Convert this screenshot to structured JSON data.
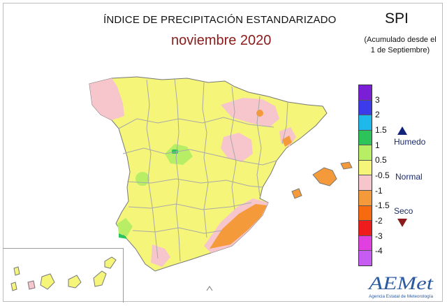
{
  "header": {
    "title": "ÍNDICE DE PRECIPITACIÓN ESTANDARIZADO",
    "month": "noviembre 2020",
    "index_short": "SPI",
    "accumulated_note_line1": "(Acumulado desde el",
    "accumulated_note_line2": "1 de Septiembre)"
  },
  "legend": {
    "ticks": [
      "3",
      "2",
      "1.5",
      "1",
      "0.5",
      "-0.5",
      "-1",
      "-1.5",
      "-2",
      "-3",
      "-4"
    ],
    "classes": [
      {
        "color": "#7a1fd6"
      },
      {
        "color": "#3b3bea"
      },
      {
        "color": "#1fb8ea"
      },
      {
        "color": "#2cc35b"
      },
      {
        "color": "#b7ee66"
      },
      {
        "color": "#f5f57a"
      },
      {
        "color": "#f6c6cc"
      },
      {
        "color": "#f59a3a"
      },
      {
        "color": "#f76a10"
      },
      {
        "color": "#ee1c1c"
      },
      {
        "color": "#e040e0"
      },
      {
        "color": "#c75cf2"
      }
    ],
    "humid_label": "Humedo",
    "normal_label": "Normal",
    "dry_label": "Seco",
    "humid_arrow_color": "#12237a",
    "dry_arrow_color": "#8b1a1a"
  },
  "logo": {
    "name": "AEMet",
    "subtitle": "Agencia Estatal de Meteorología"
  },
  "map_colors": {
    "normal": "#f5f57a",
    "wet_low": "#b7ee66",
    "wet_mid": "#2cc35b",
    "dry_low": "#f6c6cc",
    "dry_mid": "#f59a3a",
    "dry_high": "#f76a10",
    "border": "#a9a9a9",
    "outline": "#777777"
  }
}
